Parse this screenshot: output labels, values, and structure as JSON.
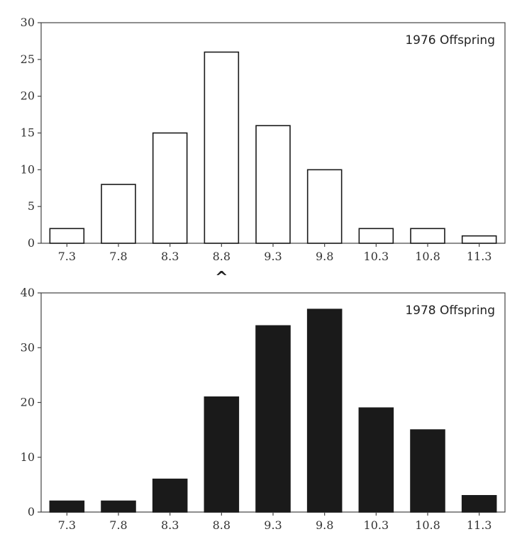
{
  "chart_data": [
    {
      "type": "bar",
      "title": "1976 Offspring",
      "legend_placement": "top-right",
      "categories": [
        "7.3",
        "7.8",
        "8.3",
        "8.8",
        "9.3",
        "9.8",
        "10.3",
        "10.8",
        "11.3"
      ],
      "values": [
        2,
        8,
        15,
        26,
        16,
        10,
        2,
        2,
        1
      ],
      "ylim": [
        0,
        30
      ],
      "yticks": [
        "0",
        "5",
        "10",
        "15",
        "20",
        "25",
        "30"
      ],
      "bar_fill": "#ffffff",
      "bar_stroke": "#1a1a1a",
      "marker": "^"
    },
    {
      "type": "bar",
      "title": "1978 Offspring",
      "legend_placement": "top-right",
      "categories": [
        "7.3",
        "7.8",
        "8.3",
        "8.8",
        "9.3",
        "9.8",
        "10.3",
        "10.8",
        "11.3"
      ],
      "values": [
        2,
        2,
        6,
        21,
        34,
        37,
        19,
        15,
        3
      ],
      "ylim": [
        0,
        40
      ],
      "yticks": [
        "0",
        "10",
        "20",
        "30",
        "40"
      ],
      "bar_fill": "#1a1a1a",
      "bar_stroke": "#1a1a1a"
    }
  ]
}
